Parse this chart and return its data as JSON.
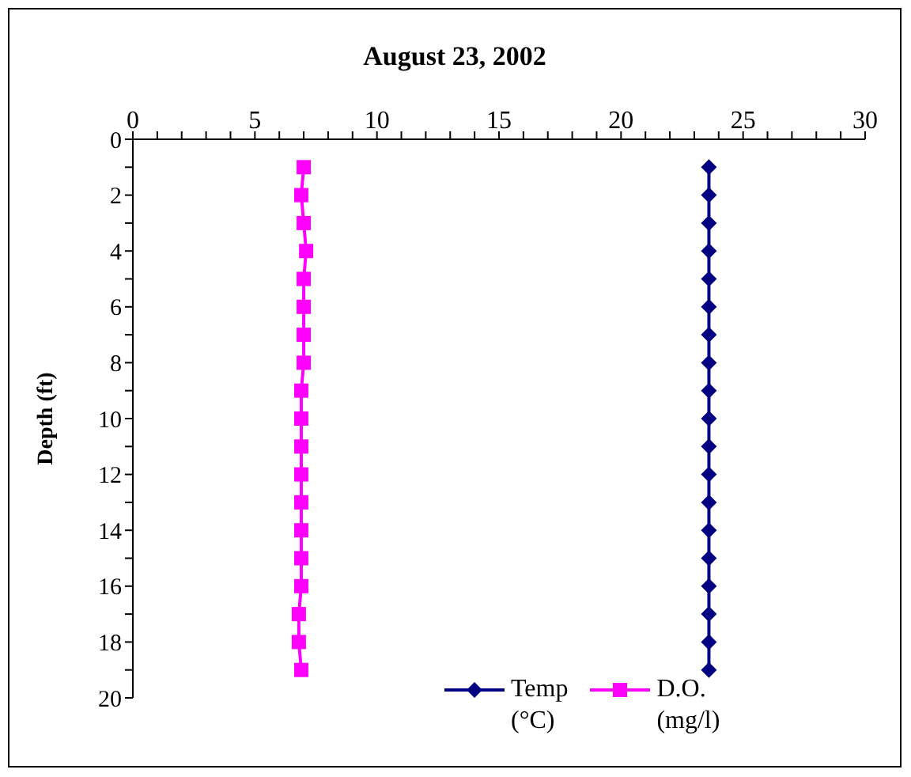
{
  "chart_data": {
    "type": "line",
    "title": "August 23, 2002",
    "ylabel": "Depth (ft)",
    "xlim": [
      0,
      30
    ],
    "xticks": [
      0,
      {
        "value": 1,
        "label": null
      },
      {
        "value": 2,
        "label": null
      },
      {
        "value": 3,
        "label": null
      },
      {
        "value": 4,
        "label": null
      },
      5,
      {
        "value": 6,
        "label": null
      },
      {
        "value": 7,
        "label": null
      },
      {
        "value": 8,
        "label": null
      },
      {
        "value": 9,
        "label": null
      },
      10,
      {
        "value": 11,
        "label": null
      },
      {
        "value": 12,
        "label": null
      },
      {
        "value": 13,
        "label": null
      },
      {
        "value": 14,
        "label": null
      },
      15,
      {
        "value": 16,
        "label": null
      },
      {
        "value": 17,
        "label": null
      },
      {
        "value": 18,
        "label": null
      },
      {
        "value": 19,
        "label": null
      },
      20,
      {
        "value": 21,
        "label": null
      },
      {
        "value": 22,
        "label": null
      },
      {
        "value": 23,
        "label": null
      },
      {
        "value": 24,
        "label": null
      },
      25,
      {
        "value": 26,
        "label": null
      },
      {
        "value": 27,
        "label": null
      },
      {
        "value": 28,
        "label": null
      },
      {
        "value": 29,
        "label": null
      },
      30
    ],
    "ylim": [
      20,
      0
    ],
    "yticks": [
      0,
      {
        "value": 1,
        "label": null
      },
      2,
      {
        "value": 3,
        "label": null
      },
      4,
      {
        "value": 5,
        "label": null
      },
      6,
      {
        "value": 7,
        "label": null
      },
      8,
      {
        "value": 9,
        "label": null
      },
      10,
      {
        "value": 11,
        "label": null
      },
      12,
      {
        "value": 13,
        "label": null
      },
      14,
      {
        "value": 15,
        "label": null
      },
      16,
      {
        "value": 17,
        "label": null
      },
      18,
      {
        "value": 19,
        "label": null
      },
      20
    ],
    "grid": false,
    "legend": "bottom right",
    "series": [
      {
        "name": "Temp (°C)",
        "color": "#000080",
        "marker": "diamond",
        "x": [
          23.6,
          23.6,
          23.6,
          23.6,
          23.6,
          23.6,
          23.6,
          23.6,
          23.6,
          23.6,
          23.6,
          23.6,
          23.6,
          23.6,
          23.6,
          23.6,
          23.6,
          23.6,
          23.6
        ],
        "values": [
          1,
          2,
          3,
          4,
          5,
          6,
          7,
          8,
          9,
          10,
          11,
          12,
          13,
          14,
          15,
          16,
          17,
          18,
          19
        ]
      },
      {
        "name": "D.O. (mg/l)",
        "color": "#ff00ff",
        "marker": "square",
        "x": [
          7.0,
          6.9,
          7.0,
          7.1,
          7.0,
          7.0,
          7.0,
          7.0,
          6.9,
          6.9,
          6.9,
          6.9,
          6.9,
          6.9,
          6.9,
          6.9,
          6.8,
          6.8,
          6.9
        ],
        "values": [
          1,
          2,
          3,
          4,
          5,
          6,
          7,
          8,
          9,
          10,
          11,
          12,
          13,
          14,
          15,
          16,
          17,
          18,
          19
        ]
      }
    ]
  }
}
